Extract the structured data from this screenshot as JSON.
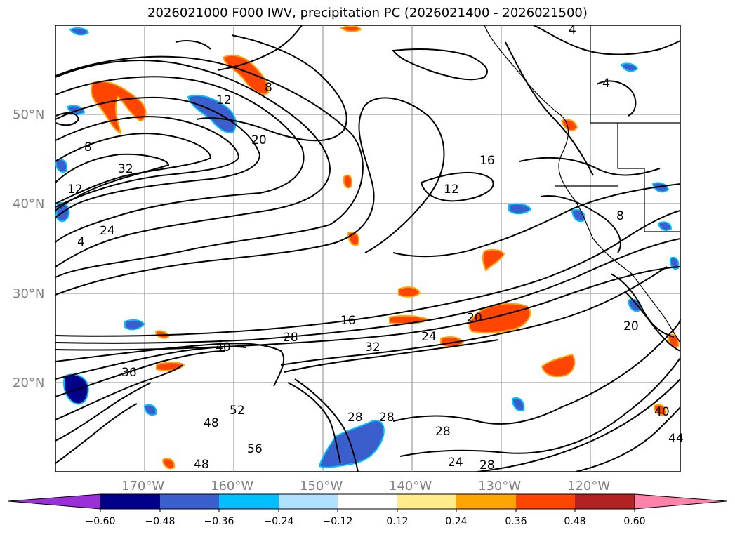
{
  "title": "2026021000 F000 IWV, precipitation PC (2026021400 - 2026021500)",
  "lat_labels": [
    "50°N",
    "40°N",
    "30°N",
    "20°N"
  ],
  "lon_labels": [
    "170°W",
    "160°W",
    "150°W",
    "140°W",
    "130°W",
    "120°W"
  ],
  "contour_labels": [
    "4",
    "8",
    "12",
    "20",
    "16",
    "12",
    "16",
    "20",
    "24",
    "28",
    "32",
    "36",
    "40",
    "48",
    "52",
    "56",
    "28",
    "28",
    "24",
    "28",
    "44",
    "40",
    "12",
    "8",
    "4",
    "4",
    "8",
    "24",
    "32",
    "20",
    "28",
    "48"
  ],
  "colorbar": {
    "ticks": [
      "−0.60",
      "−0.48",
      "−0.36",
      "−0.24",
      "−0.12",
      "0.12",
      "0.24",
      "0.36",
      "0.48",
      "0.60"
    ],
    "colors": [
      "#9b30d9",
      "#00008b",
      "#3a5fcd",
      "#00bfff",
      "#b0e2ff",
      "#ffffff",
      "#ffec8b",
      "#ffa500",
      "#ff4500",
      "#b22222",
      "#ff82ab"
    ]
  }
}
